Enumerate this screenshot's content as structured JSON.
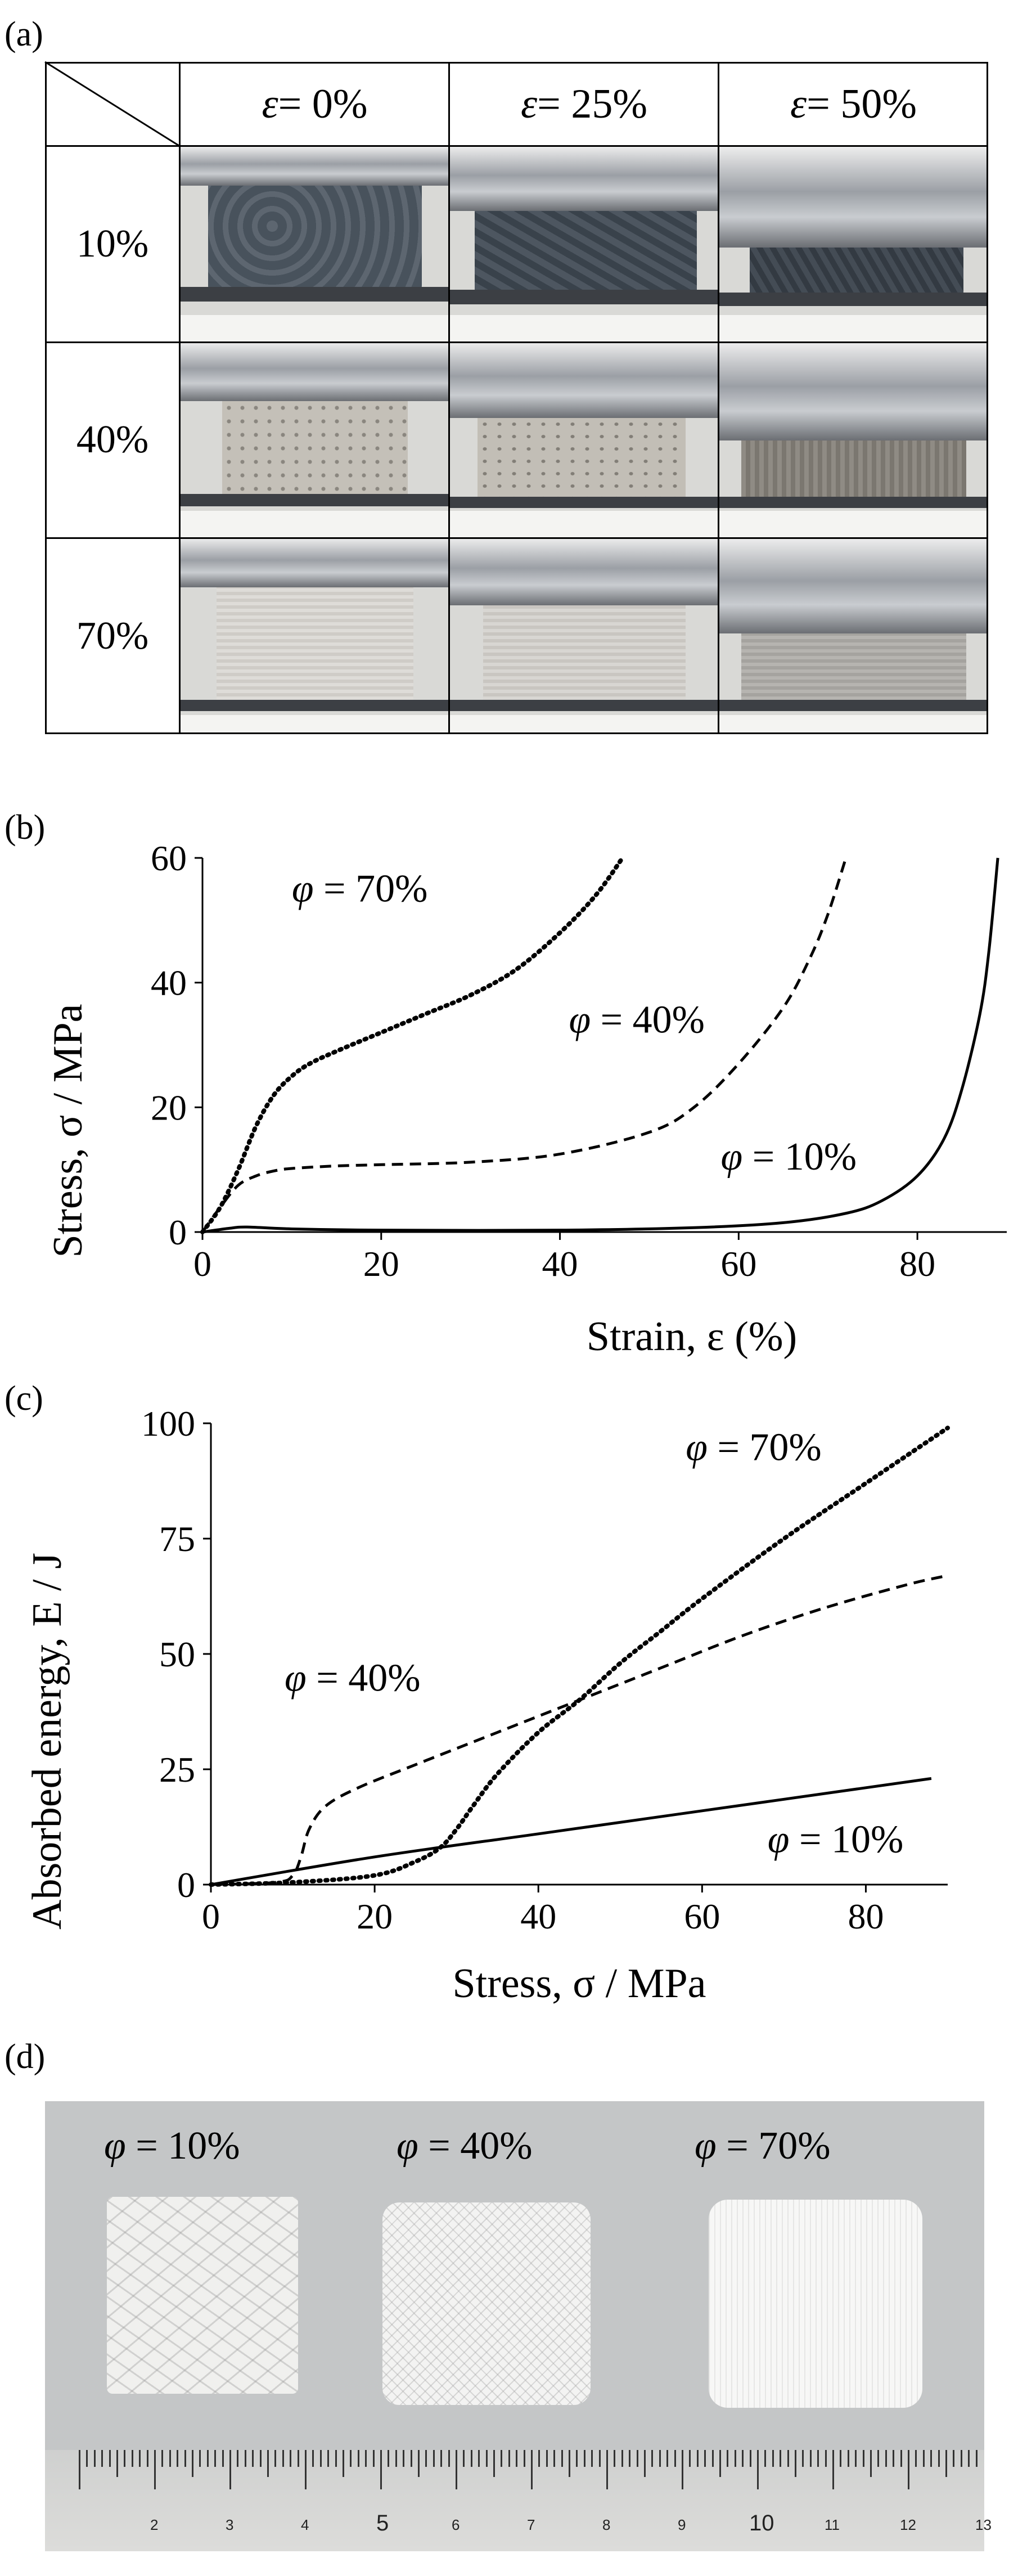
{
  "panels": {
    "a": "(a)",
    "b": "(b)",
    "c": "(c)",
    "d": "(d)"
  },
  "grid_a": {
    "col_headers": [
      {
        "symbol": "ε",
        "rest": " = 0%"
      },
      {
        "symbol": "ε",
        "rest": " = 25%"
      },
      {
        "symbol": "ε",
        "rest": " = 50%"
      }
    ],
    "row_headers": [
      "10%",
      "40%",
      "70%"
    ]
  },
  "chart_data": [
    {
      "type": "line",
      "panel": "(b)",
      "xlabel": "Strain, ε (%)",
      "ylabel": "Stress, σ / MPa",
      "xlim": [
        0,
        90
      ],
      "ylim": [
        0,
        60
      ],
      "xticks": [
        "0",
        "20",
        "40",
        "60",
        "80"
      ],
      "yticks": [
        "0",
        "20",
        "40",
        "60"
      ],
      "series": [
        {
          "name": "φ = 70%",
          "style": "dotted",
          "x": [
            0,
            2,
            4,
            6,
            8,
            10,
            12,
            15,
            20,
            25,
            30,
            35,
            40,
            44,
            47
          ],
          "y": [
            0,
            4,
            10,
            17,
            22,
            25,
            27,
            29,
            32,
            35,
            38,
            42,
            48,
            54,
            60
          ]
        },
        {
          "name": "φ = 40%",
          "style": "dashed",
          "x": [
            0,
            2,
            4,
            6,
            8,
            10,
            15,
            20,
            30,
            40,
            50,
            55,
            60,
            65,
            68,
            70,
            72
          ],
          "y": [
            0,
            4,
            7.5,
            9,
            9.8,
            10.2,
            10.6,
            10.8,
            11.2,
            12.5,
            16,
            20,
            27,
            36,
            44,
            51,
            60
          ]
        },
        {
          "name": "φ = 10%",
          "style": "solid",
          "x": [
            0,
            3,
            5,
            10,
            20,
            40,
            55,
            65,
            72,
            76,
            80,
            83,
            85,
            87,
            88,
            89
          ],
          "y": [
            0,
            0.6,
            0.8,
            0.5,
            0.3,
            0.3,
            0.7,
            1.5,
            3,
            5,
            9,
            15,
            23,
            35,
            45,
            60
          ]
        }
      ],
      "annotations": [
        "φ = 70%",
        "φ = 40%",
        "φ = 10%"
      ]
    },
    {
      "type": "line",
      "panel": "(c)",
      "xlabel": "Stress, σ / MPa",
      "ylabel": "Absorbed energy, E / J",
      "xlim": [
        0,
        90
      ],
      "ylim": [
        0,
        100
      ],
      "xticks": [
        "0",
        "20",
        "40",
        "60",
        "80"
      ],
      "yticks": [
        "0",
        "25",
        "50",
        "75",
        "100"
      ],
      "series": [
        {
          "name": "φ = 70%",
          "style": "dotted",
          "x": [
            0,
            10,
            20,
            25,
            28,
            30,
            32,
            35,
            40,
            45,
            50,
            55,
            60,
            70,
            80,
            90
          ],
          "y": [
            0,
            0.5,
            2,
            5,
            8,
            12,
            17,
            24,
            33,
            40,
            48,
            55,
            62,
            75,
            87,
            99
          ]
        },
        {
          "name": "φ = 40%",
          "style": "dashed",
          "x": [
            0,
            8,
            10,
            11,
            12,
            14,
            18,
            25,
            35,
            45,
            55,
            65,
            75,
            85,
            90
          ],
          "y": [
            0,
            0.5,
            2,
            6,
            12,
            17,
            21,
            26,
            33,
            40,
            47,
            54,
            60,
            65,
            67
          ]
        },
        {
          "name": "φ = 10%",
          "style": "solid",
          "x": [
            0,
            20,
            40,
            60,
            80,
            88
          ],
          "y": [
            0,
            6,
            11,
            16,
            21,
            23
          ]
        }
      ],
      "annotations": [
        "φ = 70%",
        "φ = 40%",
        "φ = 10%"
      ]
    }
  ],
  "photo_d": {
    "labels": [
      {
        "symbol": "φ",
        "rest": " = 10%"
      },
      {
        "symbol": "φ",
        "rest": " = 40%"
      },
      {
        "symbol": "φ",
        "rest": " = 70%"
      }
    ],
    "ruler_numbers": [
      "2",
      "3",
      "4",
      "5",
      "6",
      "7",
      "8",
      "9",
      "10",
      "11",
      "12",
      "13"
    ]
  }
}
